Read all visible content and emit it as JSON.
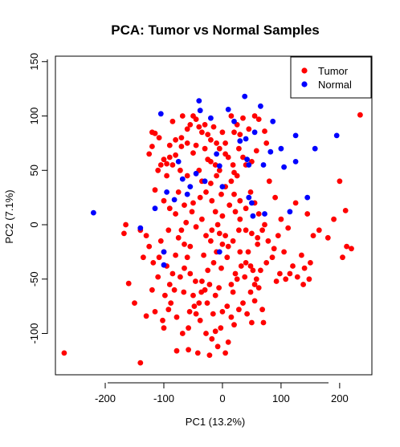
{
  "chart_data": {
    "type": "scatter",
    "title": "PCA: Tumor vs Normal Samples",
    "xlabel": "PC1 (13.2%)",
    "ylabel": "PC2 (7.1%)",
    "xlim": [
      -285,
      255
    ],
    "ylim": [
      -138,
      155
    ],
    "xticks": [
      -200,
      -100,
      0,
      100,
      200
    ],
    "yticks": [
      -100,
      -50,
      0,
      50,
      100,
      150
    ],
    "grid": false,
    "legend_position": "top-right",
    "series": [
      {
        "name": "Tumor",
        "color": "#ff0000",
        "points": [
          [
            -270,
            -118
          ],
          [
            -140,
            -127
          ],
          [
            -168,
            -8
          ],
          [
            -160,
            -54
          ],
          [
            -150,
            -72
          ],
          [
            -135,
            -30
          ],
          [
            -130,
            -84
          ],
          [
            -165,
            0
          ],
          [
            -140,
            -5
          ],
          [
            -120,
            85
          ],
          [
            -115,
            84
          ],
          [
            -108,
            80
          ],
          [
            -90,
            73
          ],
          [
            -125,
            65
          ],
          [
            -120,
            72
          ],
          [
            -100,
            60
          ],
          [
            -105,
            55
          ],
          [
            -95,
            56
          ],
          [
            -90,
            62
          ],
          [
            -80,
            64
          ],
          [
            -70,
            80
          ],
          [
            -60,
            75
          ],
          [
            -55,
            92
          ],
          [
            -50,
            100
          ],
          [
            -45,
            97
          ],
          [
            -40,
            90
          ],
          [
            -35,
            85
          ],
          [
            -30,
            92
          ],
          [
            -25,
            83
          ],
          [
            -20,
            78
          ],
          [
            -15,
            90
          ],
          [
            -10,
            75
          ],
          [
            -5,
            70
          ],
          [
            0,
            85
          ],
          [
            5,
            65
          ],
          [
            10,
            62
          ],
          [
            -68,
            100
          ],
          [
            -60,
            88
          ],
          [
            -45,
            73
          ],
          [
            -50,
            66
          ],
          [
            -70,
            72
          ],
          [
            -80,
            78
          ],
          [
            -85,
            95
          ],
          [
            -30,
            70
          ],
          [
            -25,
            60
          ],
          [
            -20,
            58
          ],
          [
            -110,
            50
          ],
          [
            -95,
            45
          ],
          [
            -85,
            55
          ],
          [
            -72,
            50
          ],
          [
            -60,
            45
          ],
          [
            -40,
            50
          ],
          [
            -35,
            40
          ],
          [
            -20,
            38
          ],
          [
            -10,
            45
          ],
          [
            -5,
            50
          ],
          [
            -115,
            32
          ],
          [
            -100,
            22
          ],
          [
            -90,
            15
          ],
          [
            -75,
            30
          ],
          [
            -80,
            10
          ],
          [
            -65,
            18
          ],
          [
            -50,
            20
          ],
          [
            -38,
            25
          ],
          [
            -28,
            30
          ],
          [
            -18,
            22
          ],
          [
            5,
            35
          ],
          [
            15,
            40
          ],
          [
            20,
            28
          ],
          [
            25,
            45
          ],
          [
            28,
            70
          ],
          [
            15,
            100
          ],
          [
            20,
            85
          ],
          [
            25,
            92
          ],
          [
            35,
            98
          ],
          [
            30,
            83
          ],
          [
            45,
            88
          ],
          [
            55,
            100
          ],
          [
            62,
            97
          ],
          [
            72,
            86
          ],
          [
            75,
            75
          ],
          [
            58,
            68
          ],
          [
            50,
            58
          ],
          [
            40,
            55
          ],
          [
            20,
            48
          ],
          [
            30,
            22
          ],
          [
            40,
            15
          ],
          [
            48,
            30
          ],
          [
            55,
            20
          ],
          [
            62,
            10
          ],
          [
            72,
            0
          ],
          [
            80,
            40
          ],
          [
            90,
            25
          ],
          [
            100,
            5
          ],
          [
            112,
            -3
          ],
          [
            125,
            20
          ],
          [
            145,
            10
          ],
          [
            155,
            -10
          ],
          [
            165,
            -5
          ],
          [
            180,
            -12
          ],
          [
            190,
            5
          ],
          [
            200,
            40
          ],
          [
            205,
            -30
          ],
          [
            210,
            13
          ],
          [
            212,
            -20
          ],
          [
            220,
            -22
          ],
          [
            235,
            101
          ],
          [
            150,
            -35
          ],
          [
            140,
            -40
          ],
          [
            135,
            -28
          ],
          [
            120,
            -38
          ],
          [
            108,
            -50
          ],
          [
            98,
            -45
          ],
          [
            92,
            -52
          ],
          [
            85,
            -30
          ],
          [
            75,
            -35
          ],
          [
            65,
            -42
          ],
          [
            55,
            -55
          ],
          [
            48,
            -62
          ],
          [
            40,
            -35
          ],
          [
            30,
            -25
          ],
          [
            22,
            -45
          ],
          [
            15,
            -55
          ],
          [
            10,
            -20
          ],
          [
            5,
            -10
          ],
          [
            0,
            -18
          ],
          [
            -5,
            -8
          ],
          [
            -10,
            -25
          ],
          [
            -15,
            -35
          ],
          [
            -20,
            -15
          ],
          [
            -25,
            -42
          ],
          [
            -30,
            -60
          ],
          [
            -35,
            -52
          ],
          [
            -40,
            -72
          ],
          [
            -45,
            -82
          ],
          [
            -50,
            -65
          ],
          [
            -55,
            -45
          ],
          [
            -60,
            -30
          ],
          [
            -65,
            -18
          ],
          [
            -70,
            -5
          ],
          [
            -75,
            -12
          ],
          [
            -80,
            -28
          ],
          [
            -85,
            -45
          ],
          [
            -90,
            -55
          ],
          [
            -95,
            -38
          ],
          [
            -100,
            -25
          ],
          [
            -105,
            -15
          ],
          [
            -110,
            -48
          ],
          [
            -118,
            -35
          ],
          [
            -125,
            -20
          ],
          [
            -98,
            -65
          ],
          [
            -88,
            -72
          ],
          [
            -78,
            -85
          ],
          [
            -68,
            -100
          ],
          [
            -58,
            -95
          ],
          [
            -48,
            -75
          ],
          [
            -38,
            -88
          ],
          [
            -28,
            -100
          ],
          [
            -18,
            -105
          ],
          [
            -8,
            -112
          ],
          [
            -3,
            -95
          ],
          [
            5,
            -118
          ],
          [
            10,
            -108
          ],
          [
            15,
            -85
          ],
          [
            20,
            -92
          ],
          [
            28,
            -78
          ],
          [
            35,
            -72
          ],
          [
            42,
            -82
          ],
          [
            50,
            -90
          ],
          [
            55,
            -70
          ],
          [
            62,
            -58
          ],
          [
            68,
            -78
          ],
          [
            70,
            -90
          ],
          [
            60,
            -18
          ],
          [
            50,
            -8
          ],
          [
            40,
            -5
          ],
          [
            30,
            5
          ],
          [
            22,
            12
          ],
          [
            12,
            18
          ],
          [
            0,
            8
          ],
          [
            -8,
            0
          ],
          [
            -18,
            -5
          ],
          [
            -28,
            -10
          ],
          [
            -35,
            5
          ],
          [
            -45,
            -2
          ],
          [
            -55,
            -20
          ],
          [
            -65,
            -40
          ],
          [
            -72,
            -48
          ],
          [
            -82,
            -60
          ],
          [
            -92,
            -78
          ],
          [
            -102,
            -88
          ],
          [
            -58,
            -115
          ],
          [
            -78,
            -116
          ],
          [
            -100,
            -95
          ],
          [
            -115,
            -80
          ],
          [
            -120,
            -60
          ],
          [
            -42,
            -118
          ],
          [
            -22,
            -120
          ],
          [
            -12,
            -98
          ],
          [
            0,
            -80
          ],
          [
            18,
            -62
          ],
          [
            25,
            -50
          ],
          [
            32,
            -38
          ],
          [
            44,
            -25
          ],
          [
            52,
            -42
          ],
          [
            60,
            -12
          ],
          [
            68,
            -5
          ],
          [
            78,
            -15
          ],
          [
            88,
            -22
          ],
          [
            95,
            -10
          ],
          [
            105,
            -25
          ],
          [
            115,
            -45
          ],
          [
            128,
            -48
          ],
          [
            138,
            -55
          ],
          [
            148,
            -50
          ],
          [
            -130,
            -10
          ],
          [
            -108,
            -30
          ],
          [
            -92,
            -5
          ],
          [
            -62,
            2
          ],
          [
            -52,
            12
          ],
          [
            -32,
            -28
          ],
          [
            -22,
            -55
          ],
          [
            -12,
            -65
          ],
          [
            -2,
            -40
          ],
          [
            8,
            -30
          ],
          [
            18,
            -15
          ],
          [
            28,
            -5
          ],
          [
            38,
            -48
          ],
          [
            48,
            -38
          ],
          [
            58,
            -50
          ],
          [
            8,
            -75
          ],
          [
            -6,
            -58
          ],
          [
            -16,
            -82
          ],
          [
            -26,
            -72
          ],
          [
            -36,
            -62
          ],
          [
            -46,
            -52
          ],
          [
            -56,
            -80
          ],
          [
            -66,
            -62
          ],
          [
            5,
            75
          ],
          [
            -12,
            55
          ],
          [
            18,
            55
          ],
          [
            35,
            62
          ],
          [
            -2,
            28
          ],
          [
            -12,
            12
          ]
        ]
      },
      {
        "name": "Normal",
        "color": "#0000ff",
        "points": [
          [
            -220,
            11
          ],
          [
            -140,
            -3
          ],
          [
            -100,
            -37
          ],
          [
            -115,
            15
          ],
          [
            -105,
            102
          ],
          [
            -95,
            30
          ],
          [
            -82,
            23
          ],
          [
            -75,
            58
          ],
          [
            -68,
            42
          ],
          [
            -60,
            28
          ],
          [
            -55,
            35
          ],
          [
            -45,
            47
          ],
          [
            -40,
            114
          ],
          [
            -38,
            105
          ],
          [
            -30,
            40
          ],
          [
            -20,
            98
          ],
          [
            -10,
            65
          ],
          [
            -5,
            54
          ],
          [
            0,
            35
          ],
          [
            10,
            106
          ],
          [
            20,
            95
          ],
          [
            30,
            77
          ],
          [
            38,
            118
          ],
          [
            40,
            79
          ],
          [
            42,
            60
          ],
          [
            45,
            55
          ],
          [
            45,
            25
          ],
          [
            50,
            20
          ],
          [
            52,
            8
          ],
          [
            55,
            85
          ],
          [
            65,
            109
          ],
          [
            72,
            10
          ],
          [
            70,
            55
          ],
          [
            82,
            67
          ],
          [
            86,
            95
          ],
          [
            100,
            70
          ],
          [
            105,
            53
          ],
          [
            115,
            12
          ],
          [
            125,
            58
          ],
          [
            125,
            82
          ],
          [
            145,
            25
          ],
          [
            158,
            70
          ],
          [
            195,
            82
          ],
          [
            -5,
            -25
          ],
          [
            -100,
            -25
          ]
        ]
      }
    ]
  }
}
